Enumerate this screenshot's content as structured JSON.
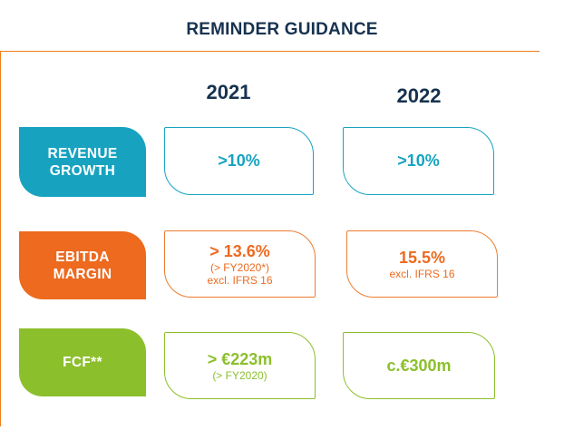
{
  "title": "REMINDER GUIDANCE",
  "years": [
    "2021",
    "2022"
  ],
  "colors": {
    "heading": "#16324f",
    "rule": "#ee7d1a",
    "teal": "#17a3c0",
    "orange": "#ed6a1f",
    "green": "#8cbf2c"
  },
  "rows": [
    {
      "label_line1": "REVENUE",
      "label_line2": "GROWTH",
      "y2021": {
        "main": ">10%"
      },
      "y2022": {
        "main": ">10%"
      }
    },
    {
      "label_line1": "EBITDA",
      "label_line2": "MARGIN",
      "y2021": {
        "main": "> 13.6%",
        "sub1": "(> FY2020*)",
        "sub2": "excl. IFRS 16"
      },
      "y2022": {
        "main": "15.5%",
        "sub1": "excl. IFRS 16"
      }
    },
    {
      "label_line1": "FCF**",
      "y2021": {
        "main": "> €223m",
        "sub1": "(> FY2020)"
      },
      "y2022": {
        "main": "c.€300m"
      }
    }
  ]
}
